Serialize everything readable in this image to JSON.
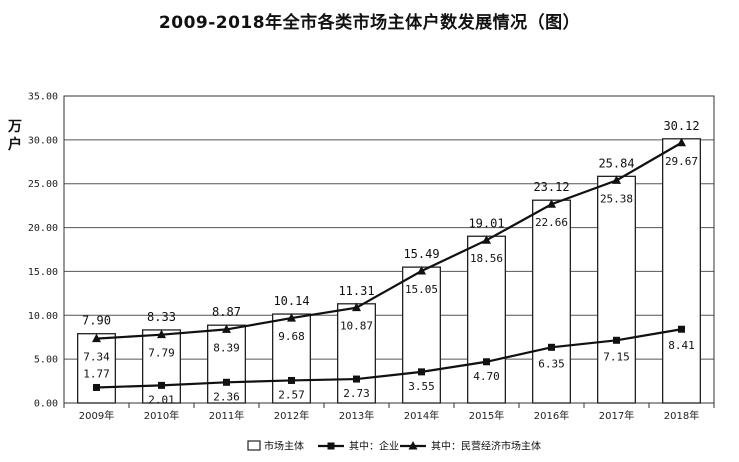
{
  "chart_data": {
    "type": "bar",
    "title": "2009-2018年全市各类市场主体户数发展情况（图）",
    "ylabel": "万户",
    "xlabel": "",
    "ylim": [
      0,
      35
    ],
    "yticks": [
      "0.00",
      "5.00",
      "10.00",
      "15.00",
      "20.00",
      "25.00",
      "30.00",
      "35.00"
    ],
    "grid": true,
    "legend_position": "bottom",
    "categories": [
      "2009年",
      "2010年",
      "2011年",
      "2012年",
      "2013年",
      "2014年",
      "2015年",
      "2016年",
      "2017年",
      "2018年"
    ],
    "series": [
      {
        "name": "市场主体",
        "type": "bar",
        "values": [
          7.9,
          8.33,
          8.87,
          10.14,
          11.31,
          15.49,
          19.01,
          23.12,
          25.84,
          30.12
        ],
        "labels": [
          "7.90",
          "8.33",
          "8.87",
          "10.14",
          "11.31",
          "15.49",
          "19.01",
          "23.12",
          "25.84",
          "30.12"
        ]
      },
      {
        "name": "其中：企业",
        "type": "line",
        "marker": "square",
        "values": [
          1.77,
          2.01,
          2.36,
          2.57,
          2.73,
          3.55,
          4.7,
          6.35,
          7.15,
          8.41
        ],
        "labels": [
          "1.77",
          "2.01",
          "2.36",
          "2.57",
          "2.73",
          "3.55",
          "4.70",
          "6.35",
          "7.15",
          "8.41"
        ]
      },
      {
        "name": "其中：民营经济市场主体",
        "type": "line",
        "marker": "triangle",
        "values": [
          7.34,
          7.79,
          8.39,
          9.68,
          10.87,
          15.05,
          18.56,
          22.66,
          25.38,
          29.67
        ],
        "labels": [
          "7.34",
          "7.79",
          "8.39",
          "9.68",
          "10.87",
          "15.05",
          "18.56",
          "22.66",
          "25.38",
          "29.67"
        ]
      }
    ]
  }
}
